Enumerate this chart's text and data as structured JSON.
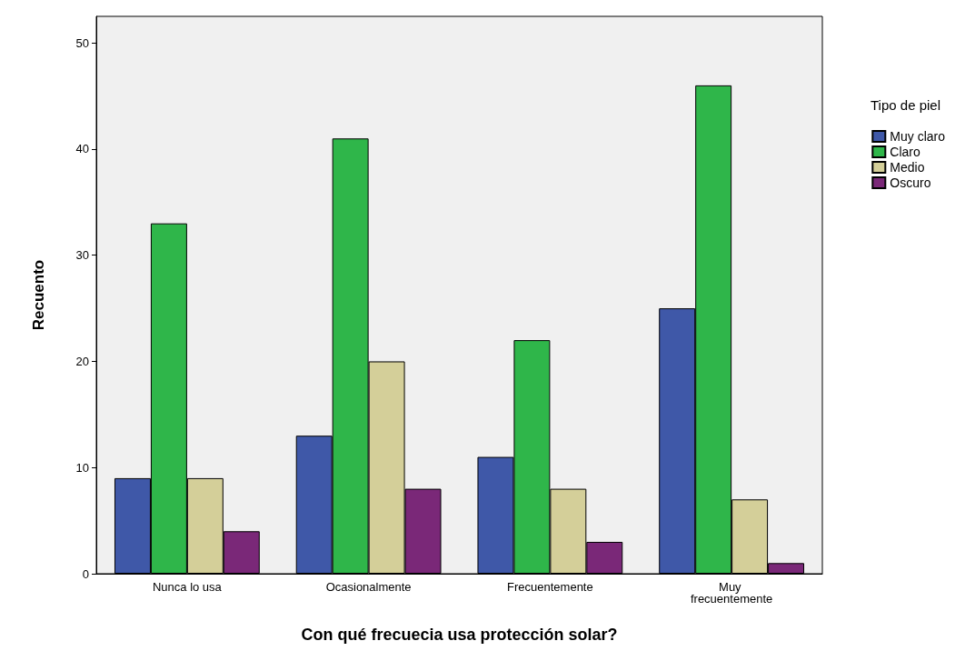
{
  "chart_data": {
    "type": "bar",
    "xlabel": "Con qué frecuecia usa protección solar?",
    "ylabel": "Recuento",
    "legend_title": "Tipo de piel",
    "categories": [
      "Nunca lo usa",
      "Ocasionalmente",
      "Frecuentemente",
      "Muy frecuentemente"
    ],
    "series": [
      {
        "name": "Muy claro",
        "color": "#3f58a8",
        "values": [
          9,
          13,
          11,
          25
        ]
      },
      {
        "name": "Claro",
        "color": "#2fb64a",
        "values": [
          33,
          41,
          22,
          46
        ]
      },
      {
        "name": "Medio",
        "color": "#d4cf99",
        "values": [
          9,
          20,
          8,
          7
        ]
      },
      {
        "name": "Oscuro",
        "color": "#7a2878",
        "values": [
          4,
          8,
          3,
          1
        ]
      }
    ],
    "ylim": [
      0,
      52.5
    ],
    "yticks": [
      0,
      10,
      20,
      30,
      40,
      50
    ],
    "grid": false,
    "legend": "right"
  }
}
